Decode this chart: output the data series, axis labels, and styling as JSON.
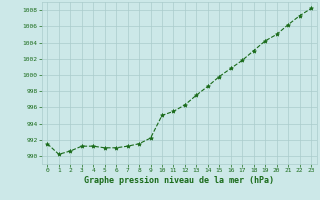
{
  "x": [
    0,
    1,
    2,
    3,
    4,
    5,
    6,
    7,
    8,
    9,
    10,
    11,
    12,
    13,
    14,
    15,
    16,
    17,
    18,
    19,
    20,
    21,
    22,
    23
  ],
  "y": [
    991.5,
    990.2,
    990.6,
    991.2,
    991.2,
    991.0,
    991.0,
    991.2,
    991.5,
    992.2,
    995.0,
    995.5,
    996.3,
    997.5,
    998.6,
    999.8,
    1000.8,
    1001.8,
    1003.0,
    1004.2,
    1005.0,
    1006.2,
    1007.3,
    1008.2
  ],
  "line_color": "#1a6b1a",
  "marker": "*",
  "marker_size": 3,
  "background_color": "#cce8e8",
  "grid_color": "#aacccc",
  "xlabel": "Graphe pression niveau de la mer (hPa)",
  "xlabel_color": "#1a6b1a",
  "tick_color": "#1a6b1a",
  "ylim": [
    989,
    1009
  ],
  "xlim": [
    -0.5,
    23.5
  ],
  "yticks": [
    990,
    992,
    994,
    996,
    998,
    1000,
    1002,
    1004,
    1006,
    1008
  ],
  "xticks": [
    0,
    1,
    2,
    3,
    4,
    5,
    6,
    7,
    8,
    9,
    10,
    11,
    12,
    13,
    14,
    15,
    16,
    17,
    18,
    19,
    20,
    21,
    22,
    23
  ],
  "xtick_labels": [
    "0",
    "1",
    "2",
    "3",
    "4",
    "5",
    "6",
    "7",
    "8",
    "9",
    "10",
    "11",
    "12",
    "13",
    "14",
    "15",
    "16",
    "17",
    "18",
    "19",
    "20",
    "21",
    "22",
    "23"
  ]
}
